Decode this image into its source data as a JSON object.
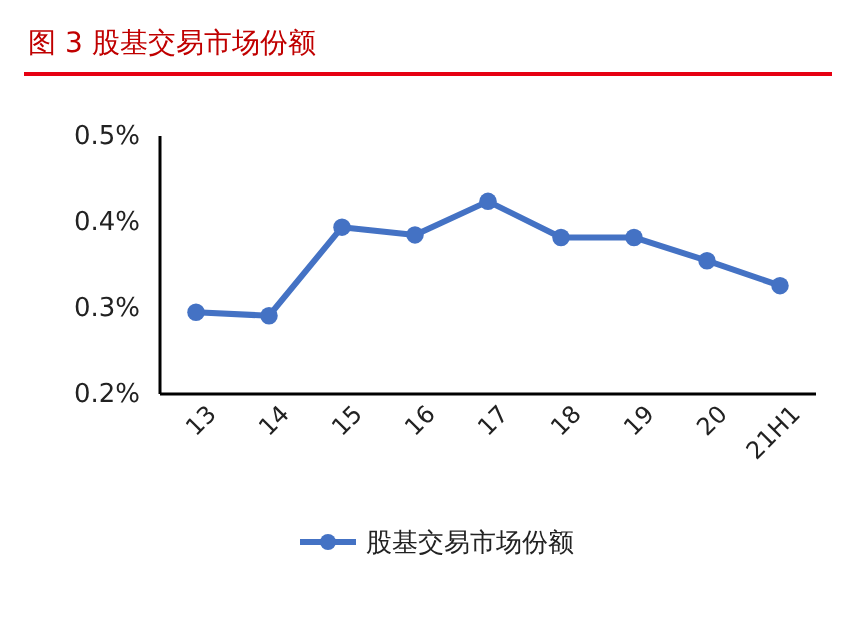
{
  "chart_data": {
    "type": "line",
    "title": "图 3   股基交易市场份额",
    "categories": [
      "13",
      "14",
      "15",
      "16",
      "17",
      "18",
      "19",
      "20",
      "21H1"
    ],
    "series": [
      {
        "name": "股基交易市场份额",
        "color": "#4472c4",
        "values": [
          0.295,
          0.291,
          0.394,
          0.385,
          0.424,
          0.382,
          0.382,
          0.355,
          0.326
        ]
      }
    ],
    "ylim": [
      0.2,
      0.5
    ],
    "yticks": [
      {
        "value": 0.2,
        "label": "0.2%"
      },
      {
        "value": 0.3,
        "label": "0.3%"
      },
      {
        "value": 0.4,
        "label": "0.4%"
      },
      {
        "value": 0.5,
        "label": "0.5%"
      }
    ],
    "grid": false,
    "legend": "bottom",
    "marker": "circle",
    "line_style": "solid"
  }
}
